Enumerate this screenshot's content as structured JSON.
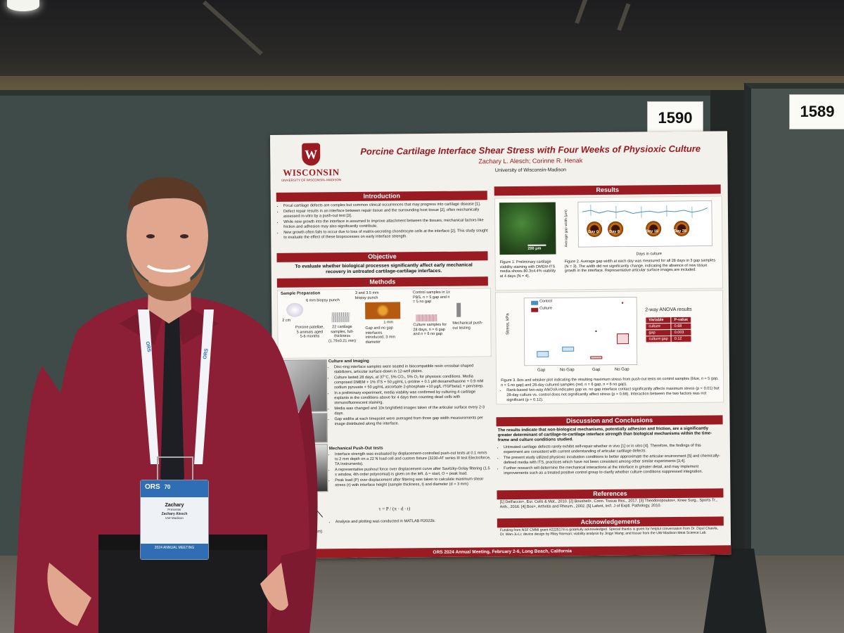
{
  "scene": {
    "booth_numbers": [
      "1590",
      "1589"
    ]
  },
  "poster": {
    "logo_text": "WISCONSIN",
    "logo_subtext": "UNIVERSITY OF WISCONSIN–MADISON",
    "title": "Porcine Cartilage Interface Shear Stress with Four Weeks of Physioxic Culture",
    "authors": "Zachary L. Alesch; Corinne R. Henak",
    "institution": "University of Wisconsin-Madison",
    "sections": {
      "introduction": "Introduction",
      "objective": "Objective",
      "methods": "Methods",
      "results": "Results",
      "discussion": "Discussion and Conclusions",
      "references": "References",
      "acknowledgements": "Acknowledgements"
    },
    "intro_bullets": [
      "Focal cartilage defects are complex but common clinical occurrences that may progress into cartilage disease [1].",
      "Defect repair results in an interface between repair tissue and the surrounding host tissue [2], often mechanically assessed in-vitro by a push-out test [3].",
      "While new growth into the interface is assumed to improve attachment between the tissues, mechanical factors like friction and adhesion may also significantly contribute.",
      "New growth often fails to occur due to loss of matrix-secreting chondrocyte cells at the interface [2]. This study sought to evaluate the effect of these bioprocesses on early interface strength."
    ],
    "objective_text": "To evaluate whether biological processes significantly affect early mechanical recovery in untreated cartilage-cartilage interfaces.",
    "methods": {
      "sample_prep": "Sample Preparation",
      "punch_6mm": "6 mm biopsy punch",
      "punch_3mm": "3 and 3.5 mm biopsy punch",
      "cm2": "2 cm",
      "mm1": "1 mm",
      "porcine": "Porcine patellae, 5 animals aged 5-6 months",
      "samples22": "22 cartilage samples, full-thickness (1.79±0.21 mm)",
      "gap_interfaces": "Gap and no gap interfaces introduced, 3 mm diameter",
      "control_samples": "Control samples in 1x PBS, n = 5 gap and n = 5 no gap",
      "culture_samples": "Culture samples for 28 days, n = 6 gap and n = 6 no gap",
      "mech_testing": "Mechanical push-out testing",
      "culture_heading": "Culture and Imaging",
      "culture_bullets": [
        "Disc-ring interface samples were seated in biocompatible resin crossbar-shaped stabilizers, articular surface-down in 12-well plates.",
        "Culture lasted 28 days, at 37°C, 5% CO₂, 5% O₂ for physioxic conditions. Media comprised DMEM + 1% ITS + 50 μg/mL L-proline + 0.1 μM dexamethasone + 0.9 mM sodium pyruvate + 50 μg/mL ascorbate 2-phosphate +10 μg/L rTGFbeta1 + pen/strep.",
        "In a preliminary experiment, media viability was confirmed by culturing 4 cartilage explants in the conditions above for 4 days then counting dead cells with immunofluorescent staining.",
        "Media was changed and 10x brightfield images taken of the articular surface every 2-3 days.",
        "Gap widths at each timepoint were averaged from three gap width measurements per image distributed along the interface."
      ],
      "pushout_heading": "Mechanical Push-Out tests",
      "pushout_bullets": [
        "Interface strength was evaluated by displacement-controlled push-out tests at 0.1 mm/s to 2 mm depth on a 22 N load cell and custom fixture (3230-AT series III test Electroforce, TA Instruments).",
        "A representative pushout force over displacement curve after Savitzky-Golay filtering (1.5 s window, 4th order polynomial) is given on the left. Δ = start, O = peak load.",
        "Peak load (P) over displacement after filtering was taken to calculate maximum shear stress (τ) with interface height (sample thickness, t) and diameter (d = 3 mm)",
        "Analysis and plotting was conducted in MATLAB R2022b."
      ],
      "formula": "τ = P / (π · d · t)",
      "disp_label": "Disp. (mm)"
    },
    "results": {
      "scale_bar": "200 μm",
      "y_axis": "Average gap width (μm)",
      "x_axis": "Days in culture",
      "day_labels": [
        "Day 0",
        "Day 8",
        "Day 18",
        "Day 28"
      ],
      "y_ticks": [
        "0",
        "20",
        "40",
        "60",
        "80",
        "100"
      ],
      "x_ticks": [
        "0",
        "5",
        "10",
        "15",
        "20",
        "25",
        "30"
      ],
      "fig1_caption": "Figure 1. Preliminary cartilage viability staining with DMEM-ITS media shows 80.3±4.4% viability at 4 days (N = 4).",
      "fig2_caption": "Figure 2. Average gap width at each day was measured for all 28 days in 3 gap samples (N = 3). The width did not significantly change, indicating the absence of new tissue growth in the interface. Representative articular surface images are included.",
      "box_legend": [
        "Control",
        "Culture"
      ],
      "box_ylabel": "Stress, kPa",
      "box_y_ticks": [
        "0",
        "5",
        "10",
        "15",
        "20"
      ],
      "box_x_labels": [
        "Gap",
        "No Gap",
        "Gap",
        "No Gap"
      ],
      "anova_title": "2-way ANOVA results",
      "anova_headers": [
        "Variable",
        "P-value"
      ],
      "anova_rows": [
        [
          "culture",
          "0.68"
        ],
        [
          "gap",
          "0.003"
        ],
        [
          "culture:gap",
          "0.12"
        ]
      ],
      "fig3_caption": "Figure 3. Box and whisker plot indicating the resulting maximum stress from push-out tests on control samples (blue, n = 5 gap, n = 5 no gap) and 28-day cultured samples (red, n = 6 gap, n = 6 no gap).",
      "fig3_bullets": [
        "Rank-based two-way ANOVA indicates gap vs. no gap interface contact significantly affects maximum stress (p < 0.01) but 28-day culture vs. control does not significantly affect stress (p = 0.68). Interaction between the two factors was not significant (p = 0.12)."
      ]
    },
    "discussion_lead": "The results indicate that non-biological mechanisms, potentially adhesion and friction, are a significantly greater determinant of cartilage-to-cartilage interface strength than biological mechanisms within the time-frame and culture conditions studied.",
    "discussion_bullets": [
      "Untreated cartilage defects rarely exhibit self-repair whether in vivo [1] or in vitro [4]. Therefore, the findings of this experiment are consistent with current understanding of articular cartilage defects.",
      "The present study utilized physioxic incubation conditions to better approximate the articular environment [5] and chemically-defined media with ITS, practices which have not been consistent among other similar experiments [3,4].",
      "Further research will determine the mechanical interactions at the interface in greater detail, and may implement improvements such as a treated positive control group to clarify whether culture conditions suppressed integration."
    ],
    "references_text": "[1] Dell'accio+, Eur. Cells & Mat., 2010. [2] Boushell+, Conn. Tissue Res., 2017. [3] Theodoropoulos+, Knee Surg., Sports Tr., Arth., 2016. [4] Bos+, Arthritis and Rheum., 2002. [5] Lafont, Int'l. J of Exptl. Pathology, 2010.",
    "acknowledgements_text": "Funding from NSF CMMI grant #2225174 is gratefully acknowledged. Special thanks is given for helpful conversation from Dr. Dipul Chawla, Dr. Wan-Ju Li; device design by Riley Norman; viability analysis by Jingyi Wang; and tissue from the UW-Madison Meat Science Lab.",
    "footer": "ORS 2024 Annual Meeting, February 2-6, Long Beach, California",
    "corner_num": "590"
  },
  "badge": {
    "logo": "ORS",
    "anniv": "70",
    "name": "Zachary",
    "role": "Presenter",
    "fullname": "Zachary Alesch",
    "org": "UW Madison",
    "footer": "2024 ANNUAL MEETING",
    "lanyard_text": "ORS"
  },
  "colors": {
    "poster_accent": "#9b1b23",
    "shirt": "#8c1e35",
    "control_blue": "#4a90c8",
    "culture_red": "#9b1b23"
  }
}
